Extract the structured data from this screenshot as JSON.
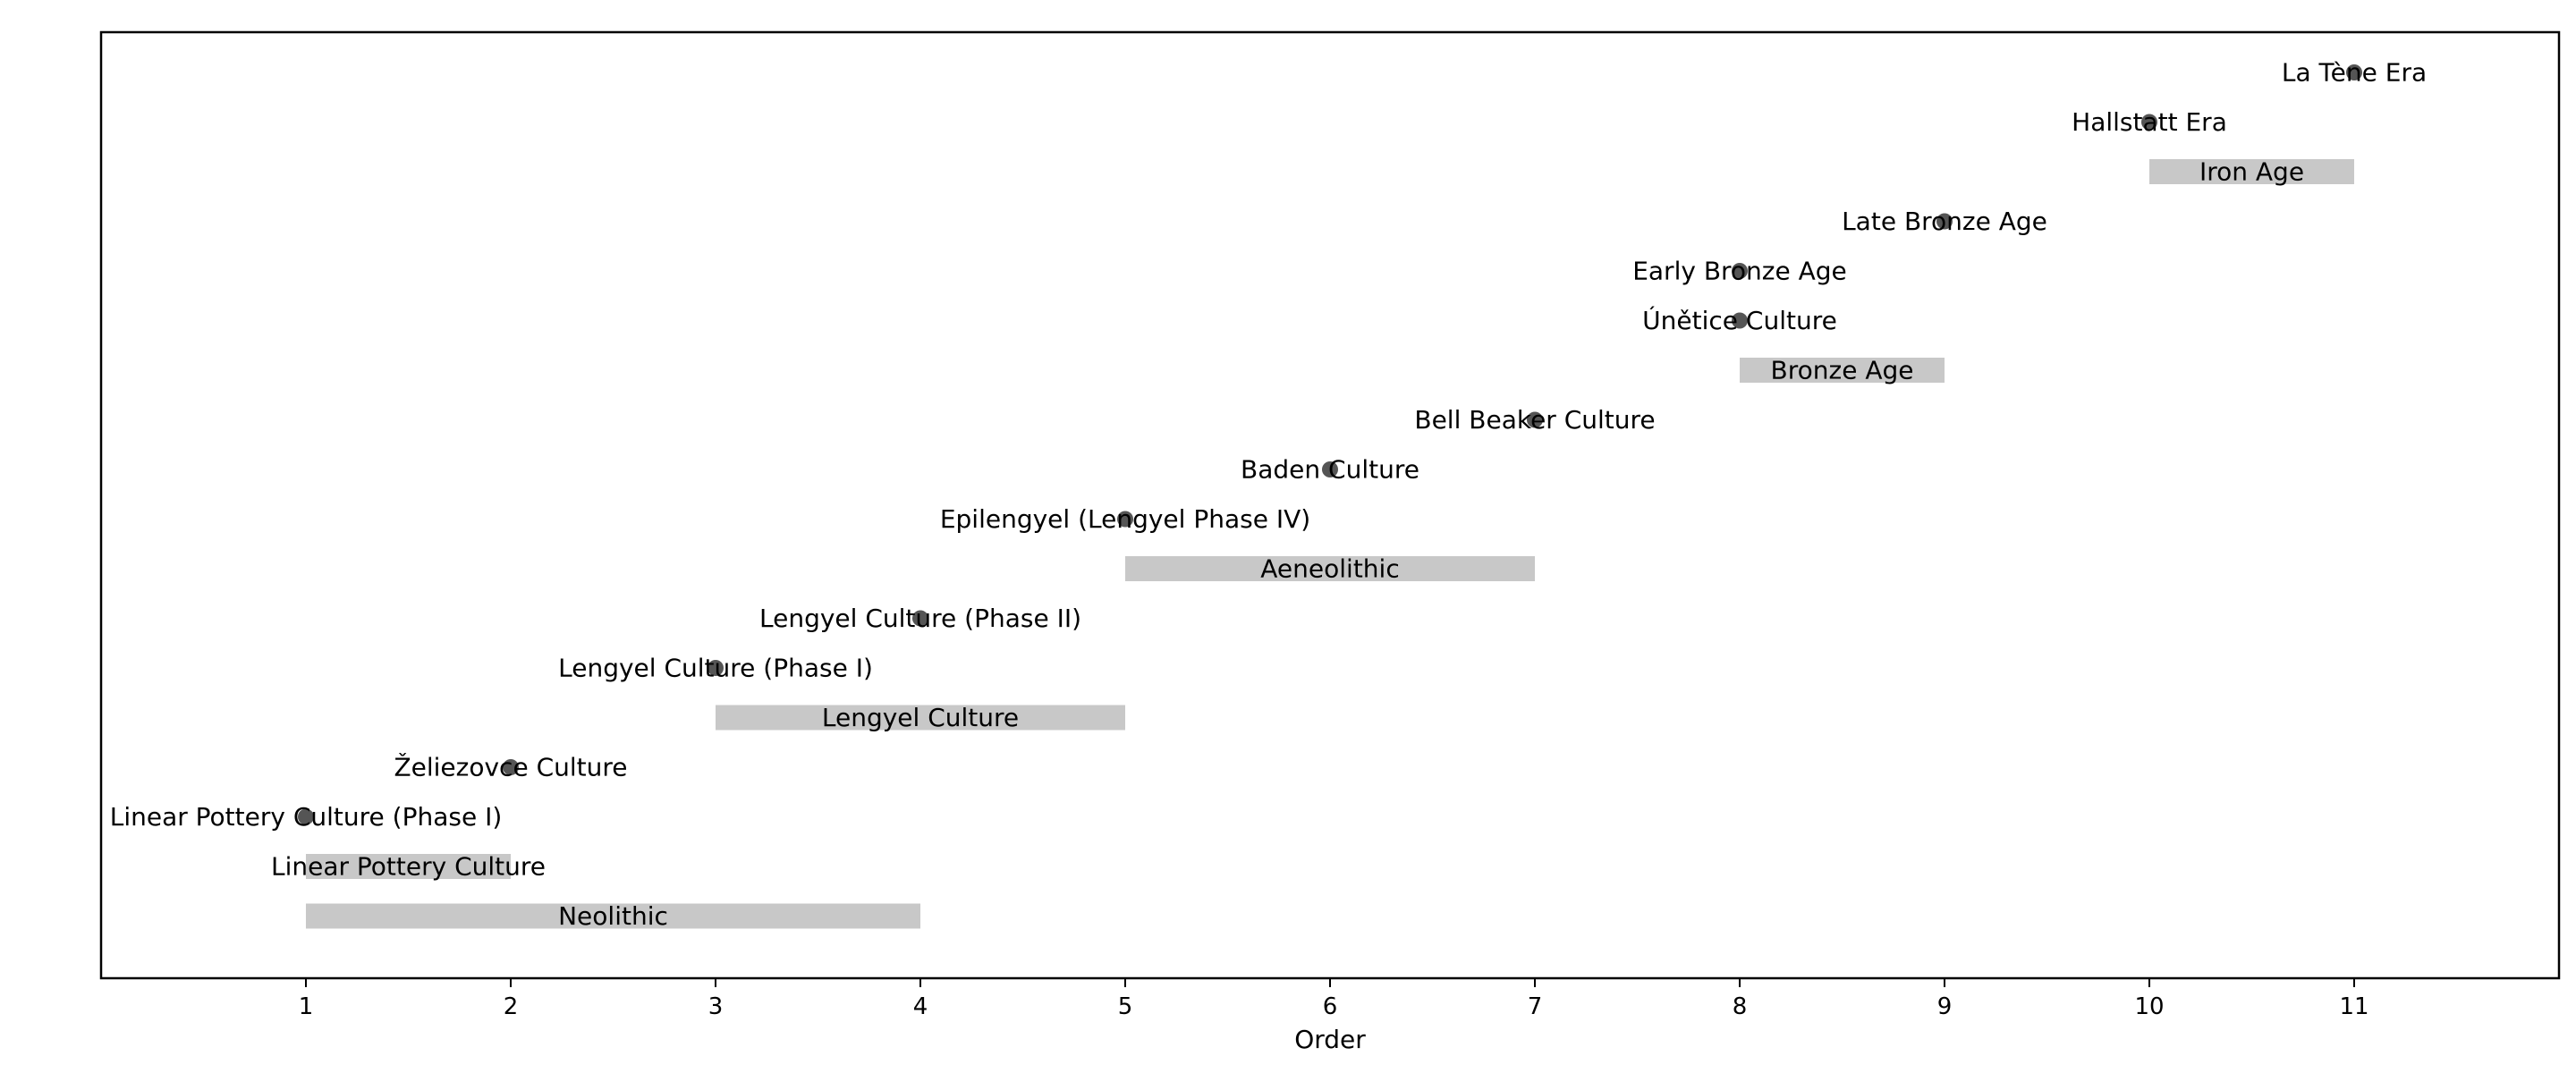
{
  "chart_data": {
    "type": "timeline",
    "xlabel": "Order",
    "xlim": [
      0,
      12
    ],
    "xticks": [
      1,
      2,
      3,
      4,
      5,
      6,
      7,
      8,
      9,
      10,
      11
    ],
    "grid": false,
    "legend": "none",
    "colors": {
      "bar": "#c8c8c8",
      "point": "#555555"
    },
    "items": [
      {
        "label": "Neolithic",
        "kind": "period",
        "start": 1,
        "end": 4
      },
      {
        "label": "Linear Pottery Culture",
        "kind": "period",
        "start": 1,
        "end": 2
      },
      {
        "label": "Linear Pottery Culture (Phase I)",
        "kind": "event",
        "x": 1
      },
      {
        "label": "Želiezovce Culture",
        "kind": "event",
        "x": 2
      },
      {
        "label": "Lengyel Culture",
        "kind": "period",
        "start": 3,
        "end": 5
      },
      {
        "label": "Lengyel Culture (Phase I)",
        "kind": "event",
        "x": 3
      },
      {
        "label": "Lengyel Culture (Phase II)",
        "kind": "event",
        "x": 4
      },
      {
        "label": "Aeneolithic",
        "kind": "period",
        "start": 5,
        "end": 7
      },
      {
        "label": "Epilengyel (Lengyel Phase IV)",
        "kind": "event",
        "x": 5
      },
      {
        "label": "Baden Culture",
        "kind": "event",
        "x": 6
      },
      {
        "label": "Bell Beaker Culture",
        "kind": "event",
        "x": 7
      },
      {
        "label": "Bronze Age",
        "kind": "period",
        "start": 8,
        "end": 9
      },
      {
        "label": "Únětice Culture",
        "kind": "event",
        "x": 8
      },
      {
        "label": "Early Bronze Age",
        "kind": "event",
        "x": 8
      },
      {
        "label": "Late Bronze Age",
        "kind": "event",
        "x": 9
      },
      {
        "label": "Iron Age",
        "kind": "period",
        "start": 10,
        "end": 11
      },
      {
        "label": "Hallstatt Era",
        "kind": "event",
        "x": 10
      },
      {
        "label": "La Tène Era",
        "kind": "event",
        "x": 11
      }
    ]
  }
}
